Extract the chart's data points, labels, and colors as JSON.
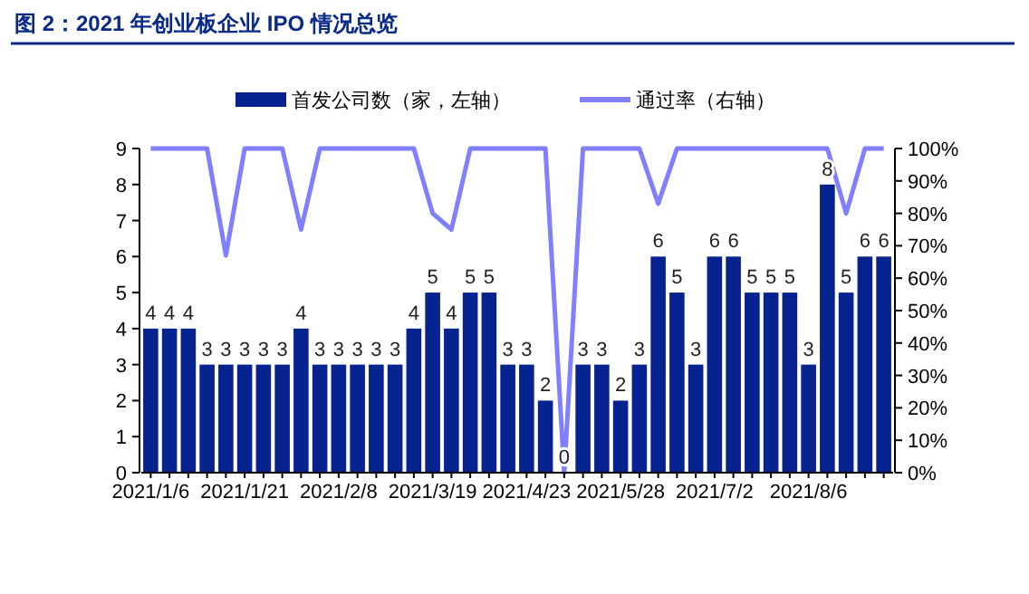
{
  "chart_data": {
    "type": "bar",
    "title": "图 2：2021 年创业板企业 IPO 情况总览",
    "categories": [
      "2021/1/6",
      null,
      null,
      null,
      null,
      "2021/1/21",
      null,
      null,
      null,
      null,
      "2021/2/8",
      null,
      null,
      null,
      null,
      "2021/3/19",
      null,
      null,
      null,
      null,
      "2021/4/23",
      null,
      null,
      null,
      null,
      "2021/5/28",
      null,
      null,
      null,
      null,
      "2021/7/2",
      null,
      null,
      null,
      null,
      "2021/8/6",
      null,
      null,
      null,
      null
    ],
    "series": [
      {
        "name": "首发公司数（家，左轴）",
        "color": "#06238f",
        "values": [
          4,
          4,
          4,
          3,
          3,
          3,
          3,
          3,
          4,
          3,
          3,
          3,
          3,
          3,
          4,
          5,
          4,
          5,
          5,
          3,
          3,
          2,
          0,
          3,
          3,
          2,
          3,
          6,
          5,
          3,
          6,
          6,
          5,
          5,
          5,
          3,
          8,
          5,
          6,
          6
        ],
        "value_labels": [
          "4",
          "4",
          "4",
          "3",
          "3",
          "3",
          "3",
          "3",
          "4",
          "3",
          "3",
          "3",
          "3",
          "3",
          "4",
          "5",
          "4",
          "5",
          "5",
          "3",
          "3",
          "2",
          "0",
          "3",
          "3",
          "2",
          "3",
          "6",
          "5",
          "3",
          "6",
          "6",
          "5",
          "5",
          "5",
          "3",
          "8",
          "5",
          "6",
          "6"
        ]
      },
      {
        "name": "通过率（右轴）",
        "type": "line",
        "axis": "y2",
        "color": "#7f7fff",
        "values": [
          100,
          100,
          100,
          100,
          67,
          100,
          100,
          100,
          75,
          100,
          100,
          100,
          100,
          100,
          100,
          80,
          75,
          100,
          100,
          100,
          100,
          100,
          0,
          100,
          100,
          100,
          100,
          83,
          100,
          100,
          100,
          100,
          100,
          100,
          100,
          100,
          100,
          80,
          100,
          100
        ]
      }
    ],
    "ylim": [
      0,
      9
    ],
    "yticks": [
      0,
      1,
      2,
      3,
      4,
      5,
      6,
      7,
      8,
      9
    ],
    "y2lim": [
      0,
      100
    ],
    "y2ticks": [
      {
        "value": 0,
        "label": "0%"
      },
      {
        "value": 10,
        "label": "10%"
      },
      {
        "value": 20,
        "label": "20%"
      },
      {
        "value": 30,
        "label": "30%"
      },
      {
        "value": 40,
        "label": "40%"
      },
      {
        "value": 50,
        "label": "50%"
      },
      {
        "value": 60,
        "label": "60%"
      },
      {
        "value": 70,
        "label": "70%"
      },
      {
        "value": 80,
        "label": "80%"
      },
      {
        "value": 90,
        "label": "90%"
      },
      {
        "value": 100,
        "label": "100%"
      }
    ],
    "legend": "top",
    "grid": false
  }
}
